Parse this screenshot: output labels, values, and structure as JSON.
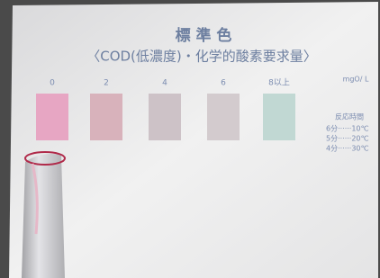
{
  "card": {
    "title": "標 準 色",
    "subtitle": "〈COD(低濃度)・化学的酸素要求量〉",
    "unit": "mgO/ L",
    "swatches": [
      {
        "label": "0",
        "color": "#e7a6c3"
      },
      {
        "label": "2",
        "color": "#d8b2bb"
      },
      {
        "label": "4",
        "color": "#cdc2c7"
      },
      {
        "label": "6",
        "color": "#d3cbce"
      },
      {
        "label": "8以上",
        "color": "#c1d8d3"
      }
    ],
    "reaction": {
      "header": "反応時間",
      "rows": [
        "6分······10℃",
        "5分······20℃",
        "4分······30℃"
      ]
    }
  }
}
